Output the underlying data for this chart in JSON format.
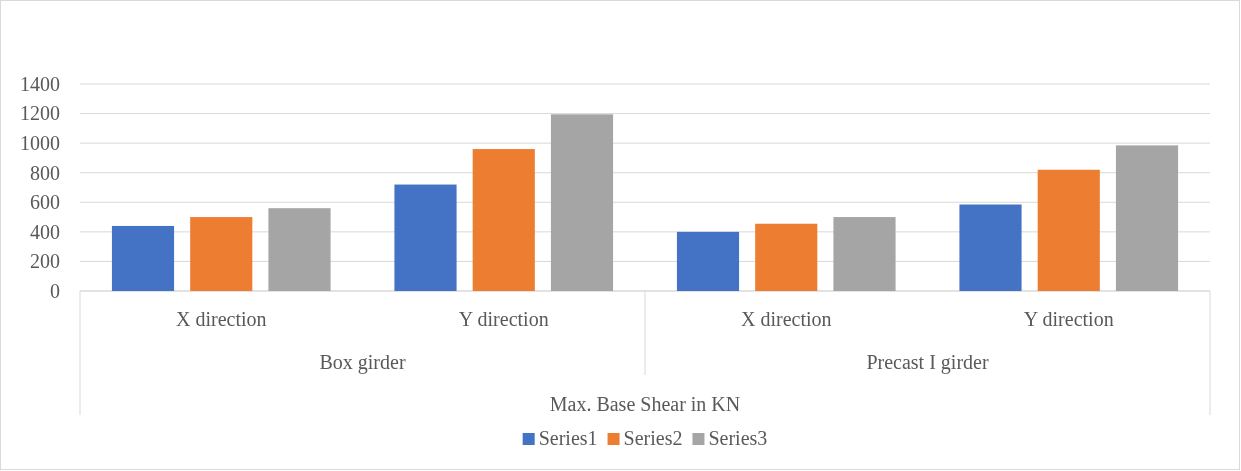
{
  "chart_data": {
    "type": "bar",
    "categories": [
      "X direction",
      "Y direction",
      "X direction",
      "Y direction"
    ],
    "series": [
      {
        "name": "Series1",
        "color": "#4472c4",
        "values": [
          440,
          720,
          400,
          585
        ]
      },
      {
        "name": "Series2",
        "color": "#ed7d31",
        "values": [
          500,
          960,
          455,
          820
        ]
      },
      {
        "name": "Series3",
        "color": "#a5a5a5",
        "values": [
          560,
          1195,
          500,
          985
        ]
      }
    ],
    "annotations": [
      "Box girder",
      "Precast I girder"
    ],
    "xlabel": "Max. Base Shear in KN",
    "ylim": [
      0,
      1400
    ],
    "yticks": [
      0,
      200,
      400,
      600,
      800,
      1000,
      1200,
      1400
    ],
    "grid": "y",
    "legend": "bottom"
  }
}
